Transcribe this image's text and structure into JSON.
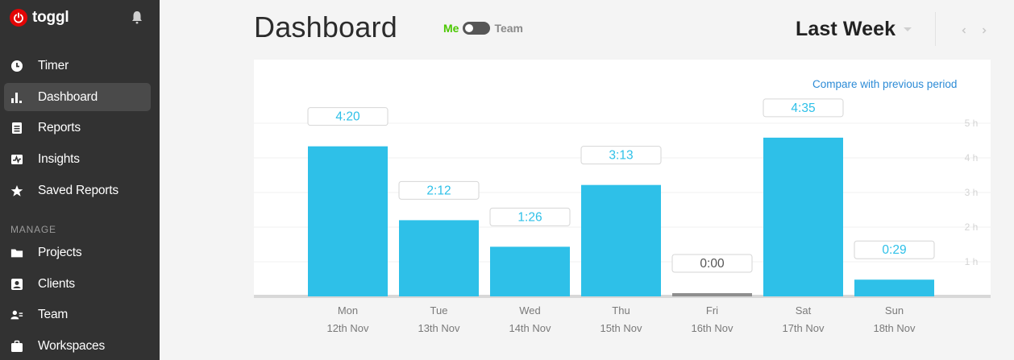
{
  "app": {
    "brand": "toggl"
  },
  "sidebar": {
    "items": [
      {
        "name": "Timer",
        "icon": "clock-icon"
      },
      {
        "name": "Dashboard",
        "icon": "bar-chart-icon",
        "active": true
      },
      {
        "name": "Reports",
        "icon": "document-icon"
      },
      {
        "name": "Insights",
        "icon": "insights-icon"
      },
      {
        "name": "Saved Reports",
        "icon": "star-icon"
      }
    ],
    "manage_label": "MANAGE",
    "manage_items": [
      {
        "name": "Projects",
        "icon": "folder-icon"
      },
      {
        "name": "Clients",
        "icon": "client-icon"
      },
      {
        "name": "Team",
        "icon": "team-icon"
      },
      {
        "name": "Workspaces",
        "icon": "briefcase-icon"
      }
    ]
  },
  "header": {
    "title": "Dashboard",
    "scope_me": "Me",
    "scope_team": "Team",
    "period": "Last Week"
  },
  "panel": {
    "compare_link": "Compare with previous period"
  },
  "colors": {
    "bar": "#2ec0e8",
    "bar_zero": "#8e8e8e",
    "label_text": "#2ec0e8",
    "label_text_zero": "#555555",
    "brand_red": "#e20505",
    "toggle_me": "#4bc800",
    "link": "#2c8bd6"
  },
  "chart_data": {
    "type": "bar",
    "categories": [
      "Mon",
      "Tue",
      "Wed",
      "Thu",
      "Fri",
      "Sat",
      "Sun"
    ],
    "dates": [
      "12th Nov",
      "13th Nov",
      "14th Nov",
      "15th Nov",
      "16th Nov",
      "17th Nov",
      "18th Nov"
    ],
    "values": [
      4.333,
      2.2,
      1.433,
      3.217,
      0.0,
      4.583,
      0.483
    ],
    "value_labels": [
      "4:20",
      "2:12",
      "1:26",
      "3:13",
      "0:00",
      "4:35",
      "0:29"
    ],
    "y_ticks": [
      {
        "value": 1,
        "label": "1 h"
      },
      {
        "value": 2,
        "label": "2 h"
      },
      {
        "value": 3,
        "label": "3 h"
      },
      {
        "value": 4,
        "label": "4 h"
      },
      {
        "value": 5,
        "label": "5 h"
      }
    ],
    "ylim": [
      0,
      5
    ],
    "grid": true
  }
}
